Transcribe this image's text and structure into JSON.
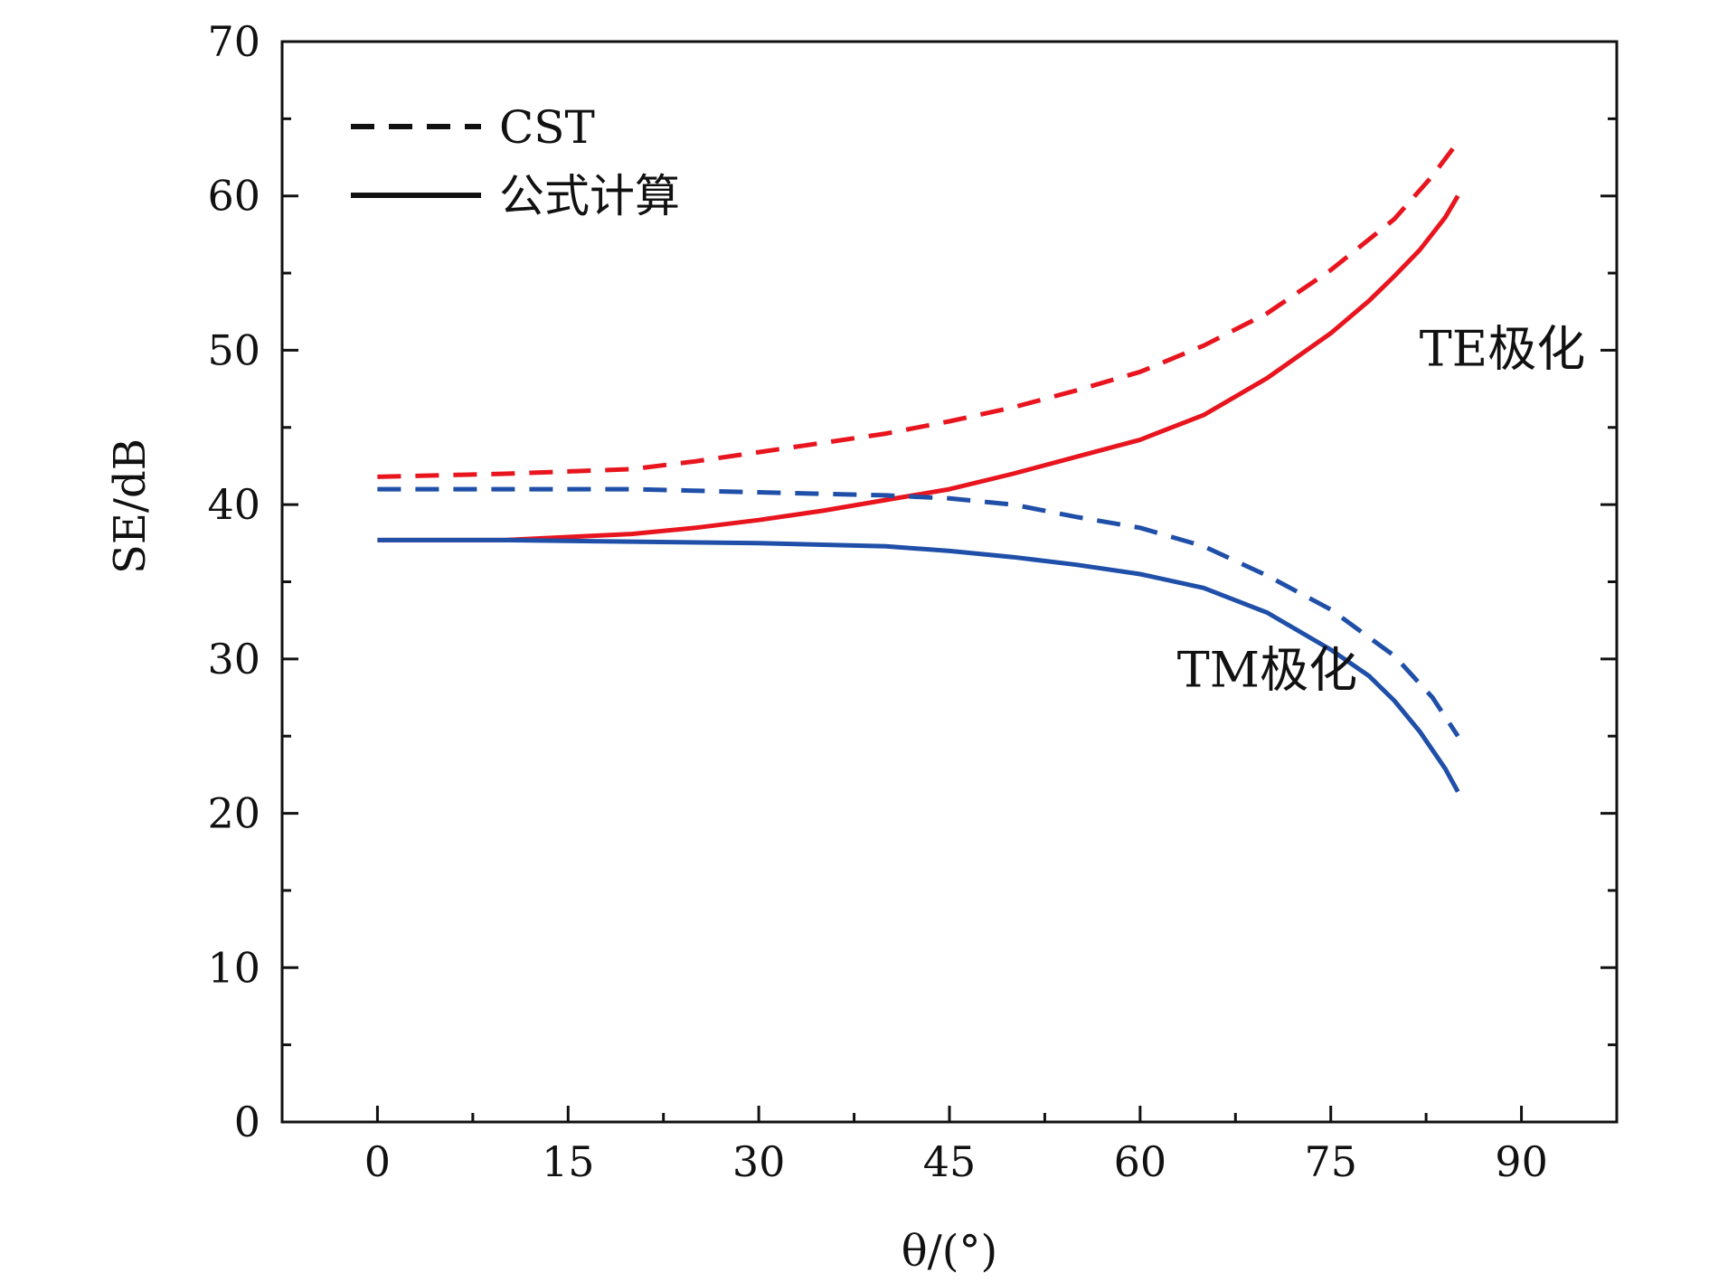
{
  "chart_data": {
    "type": "line",
    "xlabel": "θ/(°)",
    "ylabel": "SE/dB",
    "xlim": [
      -7.5,
      97.5
    ],
    "ylim": [
      0,
      70
    ],
    "xticks": [
      0,
      15,
      30,
      45,
      60,
      75,
      90
    ],
    "yticks": [
      0,
      10,
      20,
      30,
      40,
      50,
      60,
      70
    ],
    "grid": false,
    "legend": {
      "position": "top-left",
      "entries": [
        {
          "label": "CST",
          "style": "dashed"
        },
        {
          "label": "公式计算",
          "style": "solid"
        }
      ]
    },
    "annotations": [
      {
        "text": "TE极化",
        "x": 88.5,
        "y": 49
      },
      {
        "text": "TM极化",
        "x": 70,
        "y": 28.2
      }
    ],
    "series": [
      {
        "color": "#e8141e",
        "style": "dashed",
        "x": [
          0,
          10,
          20,
          25,
          30,
          35,
          40,
          45,
          50,
          55,
          60,
          65,
          70,
          75,
          80,
          83,
          85
        ],
        "y": [
          41.8,
          42.0,
          42.3,
          42.8,
          43.4,
          44.0,
          44.6,
          45.4,
          46.3,
          47.4,
          48.6,
          50.3,
          52.4,
          55.2,
          58.5,
          61.3,
          63.5
        ]
      },
      {
        "color": "#e8141e",
        "style": "solid",
        "x": [
          0,
          10,
          15,
          20,
          25,
          30,
          35,
          40,
          45,
          50,
          55,
          60,
          65,
          70,
          75,
          78,
          80,
          82,
          84,
          85
        ],
        "y": [
          37.7,
          37.7,
          37.9,
          38.1,
          38.5,
          39.0,
          39.6,
          40.3,
          41.0,
          42.0,
          43.1,
          44.2,
          45.8,
          48.2,
          51.1,
          53.2,
          54.8,
          56.5,
          58.6,
          60.0
        ]
      },
      {
        "color": "#1f4fa8",
        "style": "dashed",
        "x": [
          0,
          10,
          20,
          30,
          40,
          45,
          50,
          55,
          60,
          65,
          70,
          75,
          80,
          83,
          85
        ],
        "y": [
          41.0,
          41.0,
          41.0,
          40.8,
          40.6,
          40.4,
          40.0,
          39.2,
          38.5,
          37.3,
          35.4,
          33.2,
          30.2,
          27.5,
          25.0
        ]
      },
      {
        "color": "#1f4fa8",
        "style": "solid",
        "x": [
          0,
          10,
          20,
          30,
          40,
          45,
          50,
          55,
          60,
          65,
          70,
          75,
          78,
          80,
          82,
          84,
          85
        ],
        "y": [
          37.7,
          37.7,
          37.6,
          37.5,
          37.3,
          37.0,
          36.6,
          36.1,
          35.5,
          34.6,
          33.0,
          30.6,
          28.9,
          27.3,
          25.3,
          22.9,
          21.4
        ]
      }
    ]
  }
}
